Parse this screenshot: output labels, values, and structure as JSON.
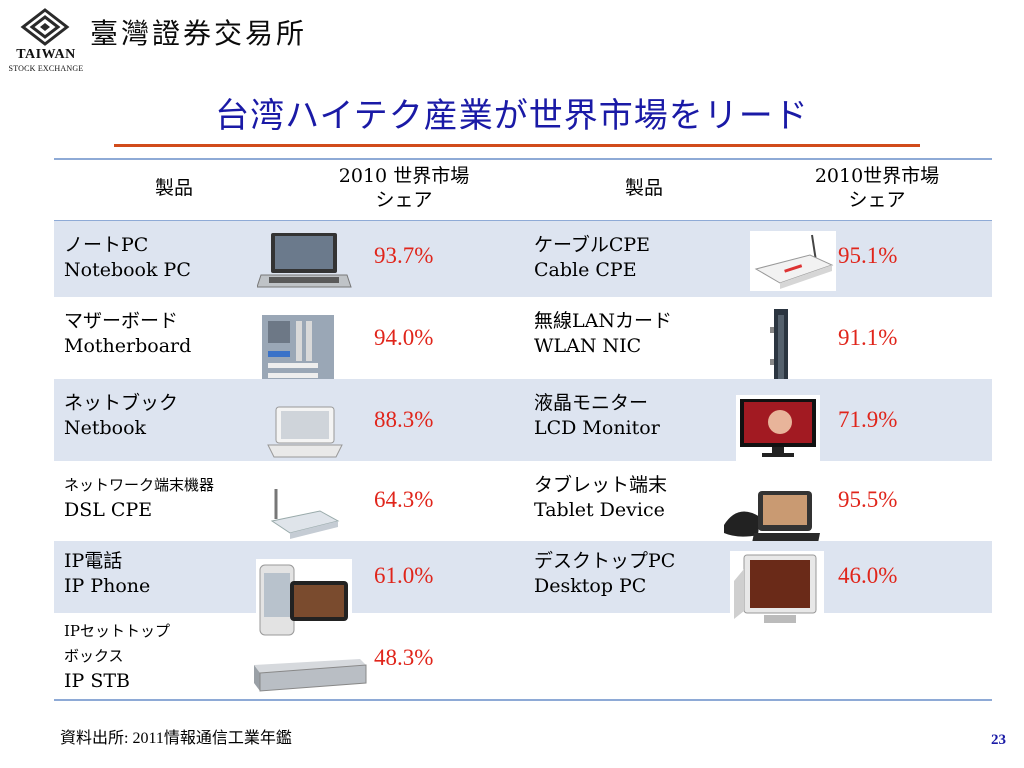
{
  "header": {
    "org_name_jp": "臺灣證券交易所",
    "logo_text_1": "TAIWAN",
    "logo_text_2": "STOCK EXCHANGE"
  },
  "title": "台湾ハイテク産業が世界市場をリード",
  "table": {
    "left_header_product": "製品",
    "left_header_share_1": "2010 世界市場",
    "left_header_share_2": "シェア",
    "right_header_product": "製品",
    "right_header_share_1": "2010世界市場",
    "right_header_share_2": "シェア",
    "rows": [
      {
        "left": {
          "jp": "ノートPC",
          "en": "Notebook PC",
          "share": "93.7%",
          "icon": "laptop-icon"
        },
        "right": {
          "jp": "ケーブルCPE",
          "en": "Cable CPE",
          "share": "95.1%",
          "icon": "cable-modem-icon"
        }
      },
      {
        "left": {
          "jp": "マザーボード",
          "en": "Motherboard",
          "share": "94.0%",
          "icon": "motherboard-icon"
        },
        "right": {
          "jp": "無線LANカード",
          "en": " WLAN NIC",
          "share": "91.1%",
          "icon": "wlan-card-icon"
        }
      },
      {
        "left": {
          "jp": "ネットブック",
          "en": "Netbook",
          "share": "88.3%",
          "icon": "netbook-icon"
        },
        "right": {
          "jp": "液晶モニター",
          "en": "LCD Monitor",
          "share": "71.9%",
          "icon": "lcd-monitor-icon"
        }
      },
      {
        "left": {
          "jp": "ネットワーク端末機器",
          "en": "DSL CPE",
          "share": "64.3%",
          "icon": "router-icon"
        },
        "right": {
          "jp": "タブレット端末",
          "en": "Tablet Device",
          "share": "95.5%",
          "icon": "video-phone-icon"
        }
      },
      {
        "left": {
          "jp": "IP電話",
          "en": "IP Phone",
          "share": "61.0%",
          "icon": "smartphone-icon"
        },
        "right": {
          "jp": "デスクトップPC",
          "en": "Desktop PC",
          "share": "46.0%",
          "icon": "crt-monitor-icon"
        }
      },
      {
        "left": {
          "jp1": "IPセットトップ",
          "jp2": "ボックス",
          "en": "IP STB",
          "share": "48.3%",
          "icon": "set-top-box-icon"
        }
      }
    ]
  },
  "footer": {
    "source": "資料出所: 2011情報通信工業年鑑",
    "page_number": "23"
  },
  "colors": {
    "title": "#1a1aa6",
    "accent_rule": "#d14b1b",
    "percent": "#e0251b",
    "row_shade": "#dde4f0",
    "table_line": "#8eaad6"
  }
}
